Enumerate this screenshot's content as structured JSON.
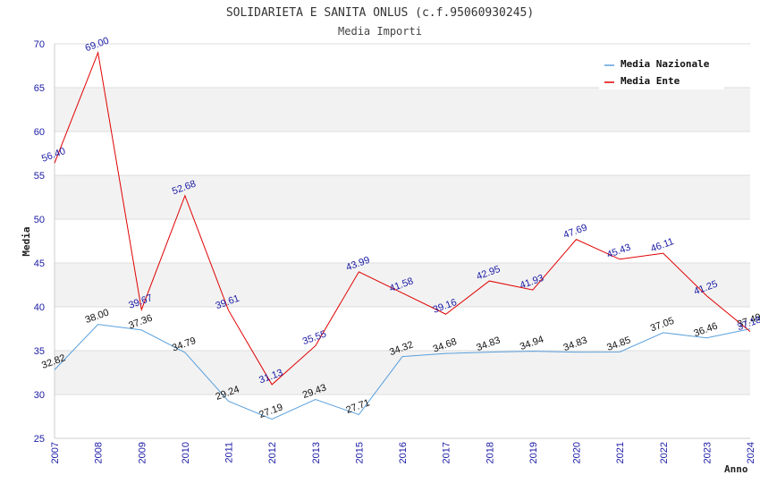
{
  "chart_data": {
    "type": "line",
    "title": "SOLIDARIETA E SANITA ONLUS (c.f.95060930245)",
    "subtitle": "Media Importi",
    "xlabel": "Anno",
    "ylabel": "Media",
    "ylim": [
      25,
      70
    ],
    "yticks": [
      "25",
      "30",
      "35",
      "40",
      "45",
      "50",
      "55",
      "60",
      "65",
      "70"
    ],
    "categories": [
      "2007",
      "2008",
      "2009",
      "2010",
      "2011",
      "2012",
      "2013",
      "2015",
      "2016",
      "2017",
      "2018",
      "2019",
      "2020",
      "2021",
      "2022",
      "2023",
      "2024"
    ],
    "series": [
      {
        "name": "Media Nazionale",
        "color": "#5aa0dc",
        "values": [
          32.82,
          38.0,
          37.36,
          34.79,
          29.24,
          27.19,
          29.43,
          27.71,
          34.32,
          34.68,
          34.83,
          34.94,
          34.83,
          34.85,
          37.05,
          36.46,
          37.49
        ],
        "labels": [
          "32.82",
          "38.00",
          "37.36",
          "34.79",
          "29.24",
          "27.19",
          "29.43",
          "27.71",
          "34.32",
          "34.68",
          "34.83",
          "34.94",
          "34.83",
          "34.85",
          "37.05",
          "36.46",
          "37.49"
        ]
      },
      {
        "name": "Media Ente",
        "color": "#e00000",
        "values": [
          56.4,
          69.0,
          39.67,
          52.68,
          39.61,
          31.13,
          35.55,
          43.99,
          41.58,
          39.16,
          42.95,
          41.93,
          47.69,
          45.43,
          46.11,
          41.25,
          37.18
        ],
        "labels": [
          "56.40",
          "69.00",
          "39.67",
          "52.68",
          "39.61",
          "31.13",
          "35.55",
          "43.99",
          "41.58",
          "39.16",
          "42.95",
          "41.93",
          "47.69",
          "45.43",
          "46.11",
          "41.25",
          "37.18"
        ]
      }
    ],
    "grid": true,
    "legend": "top-right"
  }
}
